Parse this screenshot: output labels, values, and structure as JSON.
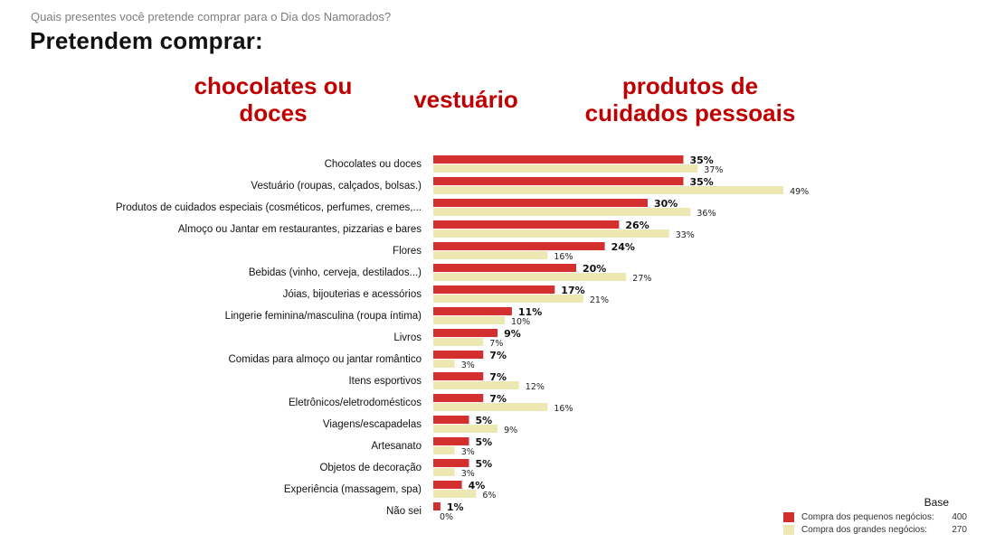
{
  "question": "Quais presentes você pretende comprar para o Dia dos Namorados?",
  "title": "Pretendem comprar:",
  "highlights": [
    "chocolates ou doces",
    "vestuário",
    "produtos de cuidados pessoais"
  ],
  "colors": {
    "small": "#d32f2f",
    "large": "#ede8b3",
    "highlight": "#c00000"
  },
  "legend": {
    "title": "Base",
    "items": [
      {
        "label": "Compra dos pequenos negócios:",
        "base": "400"
      },
      {
        "label": "Compra dos grandes negócios:",
        "base": "270"
      }
    ]
  },
  "chart_data": {
    "type": "bar",
    "orientation": "horizontal",
    "categories": [
      "Chocolates ou doces",
      "Vestuário (roupas, calçados, bolsas.)",
      "Produtos de cuidados especiais (cosméticos, perfumes, cremes,...",
      "Almoço ou Jantar em restaurantes, pizzarias e bares",
      "Flores",
      "Bebidas (vinho, cerveja, destilados...)",
      "Jóias, bijouterias e acessórios",
      "Lingerie feminina/masculina (roupa íntima)",
      "Livros",
      "Comidas para almoço ou jantar romântico",
      "Itens esportivos",
      "Eletrônicos/eletrodomésticos",
      "Viagens/escapadelas",
      "Artesanato",
      "Objetos de decoração",
      "Experiência (massagem, spa)",
      "Não sei"
    ],
    "series": [
      {
        "name": "Compra dos pequenos negócios",
        "values": [
          35,
          35,
          30,
          26,
          24,
          20,
          17,
          11,
          9,
          7,
          7,
          7,
          5,
          5,
          5,
          4,
          1
        ]
      },
      {
        "name": "Compra dos grandes negócios",
        "values": [
          37,
          49,
          36,
          33,
          16,
          27,
          21,
          10,
          7,
          3,
          12,
          16,
          9,
          3,
          3,
          6,
          0
        ]
      }
    ],
    "value_suffix": "%"
  }
}
